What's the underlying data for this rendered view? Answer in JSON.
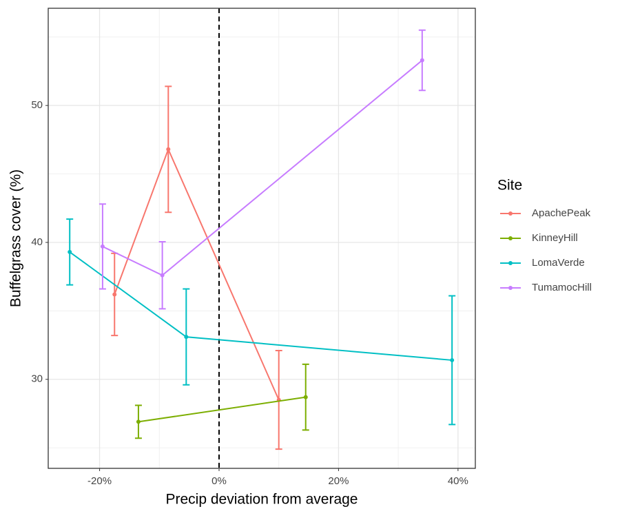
{
  "chart_data": {
    "type": "line",
    "x_label": "Precip deviation from average",
    "y_label": "Buffelgrass cover (%)",
    "legend_title": "Site",
    "legend_position": "right",
    "grid": true,
    "vline": 0,
    "xlim": [
      -28.6,
      42.9
    ],
    "ylim": [
      23.5,
      57.1
    ],
    "xticks": [
      {
        "value": -20,
        "label": "-20%"
      },
      {
        "value": 0,
        "label": "0%"
      },
      {
        "value": 20,
        "label": "20%"
      },
      {
        "value": 40,
        "label": "40%"
      }
    ],
    "yticks": [
      30,
      40,
      50
    ],
    "series": [
      {
        "name": "ApachePeak",
        "color": "#F8766D",
        "x": [
          -17.5,
          -8.5,
          10
        ],
        "values": [
          36.2,
          46.8,
          28.5
        ],
        "errors": [
          3.0,
          4.6,
          3.6
        ]
      },
      {
        "name": "KinneyHill",
        "color": "#7CAE00",
        "x": [
          -13.5,
          14.5
        ],
        "values": [
          26.9,
          28.7
        ],
        "errors": [
          1.2,
          2.4
        ]
      },
      {
        "name": "LomaVerde",
        "color": "#00BFC4",
        "x": [
          -25,
          -5.5,
          39
        ],
        "values": [
          39.3,
          33.1,
          31.4
        ],
        "errors": [
          2.4,
          3.5,
          4.7
        ]
      },
      {
        "name": "TumamocHill",
        "color": "#C77CFF",
        "x": [
          -19.5,
          -9.5,
          34
        ],
        "values": [
          39.7,
          37.6,
          53.3
        ],
        "errors": [
          3.1,
          2.45,
          2.2
        ]
      }
    ]
  }
}
